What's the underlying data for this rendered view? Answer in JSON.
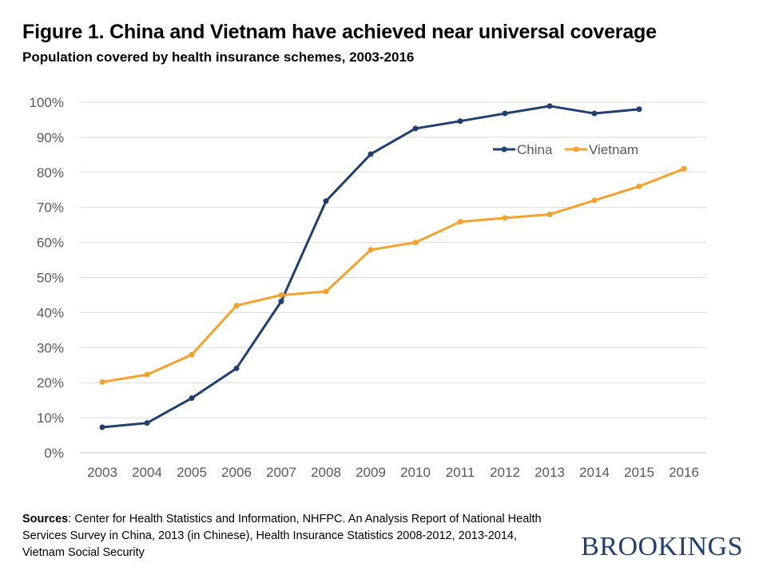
{
  "page": {
    "title": "Figure 1. China and Vietnam have achieved near universal coverage",
    "subtitle": "Population covered by health insurance schemes, 2003-2016",
    "sources_label": "Sources",
    "sources_text": ": Center for Health Statistics and Information, NHFPC. An Analysis Report of National Health Services Survey in China, 2013 (in Chinese), Health Insurance Statistics 2008-2012, 2013-2014, Vietnam Social Security",
    "logo": "BROOKINGS"
  },
  "chart_data": {
    "type": "line",
    "title": "Figure 1. China and Vietnam have achieved near universal coverage",
    "subtitle": "Population covered by health insurance schemes, 2003-2016",
    "xlabel": "",
    "ylabel": "",
    "categories": [
      "2003",
      "2004",
      "2005",
      "2006",
      "2007",
      "2008",
      "2009",
      "2010",
      "2011",
      "2012",
      "2013",
      "2014",
      "2015",
      "2016"
    ],
    "ylim": [
      0,
      100
    ],
    "y_ticks": [
      0,
      10,
      20,
      30,
      40,
      50,
      60,
      70,
      80,
      90,
      100
    ],
    "y_tick_labels": [
      "0%",
      "10%",
      "20%",
      "30%",
      "40%",
      "50%",
      "60%",
      "70%",
      "80%",
      "90%",
      "100%"
    ],
    "grid": true,
    "legend_position": "top-right",
    "series": [
      {
        "name": "China",
        "color": "#1f3f6e",
        "values": [
          7.3,
          8.5,
          15.6,
          24.1,
          43.2,
          71.8,
          85.2,
          92.5,
          94.6,
          96.8,
          98.9,
          96.8,
          98.0,
          null
        ]
      },
      {
        "name": "Vietnam",
        "color": "#f4a12e",
        "values": [
          20.2,
          22.3,
          28.0,
          42.0,
          45.0,
          46.0,
          57.9,
          60.0,
          65.9,
          67.0,
          68.0,
          72.0,
          76.0,
          81.0
        ]
      }
    ]
  }
}
